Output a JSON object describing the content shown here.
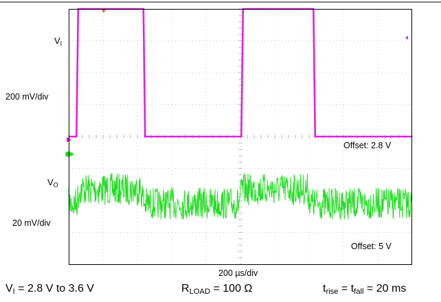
{
  "chart_data": {
    "type": "line",
    "title": "",
    "timebase": "200 µs/div",
    "grid": true,
    "x_divisions": 10,
    "y_divisions": 8,
    "channels": [
      {
        "name_main": "V",
        "name_sub": "I",
        "scale": "200 mV/div",
        "offset": "Offset: 2.8 V",
        "color": "#e020e0",
        "unit": "V",
        "offset_value": 2.8,
        "volts_per_div": 0.2,
        "x_div": [
          0.0,
          0.45,
          0.55,
          4.35,
          4.45,
          10.05,
          10.15,
          14.25,
          14.35,
          17.15,
          17.25,
          20.0
        ],
        "y": [
          2.8,
          2.8,
          3.6,
          3.6,
          2.8,
          2.8,
          3.6,
          3.6,
          2.8,
          2.8,
          2.8,
          2.8
        ]
      },
      {
        "name_main": "V",
        "name_sub": "O",
        "scale": "20 mV/div",
        "offset": "Offset: 5 V",
        "color": "#22dd22",
        "unit": "V",
        "offset_value": 5.0,
        "volts_per_div": 0.02,
        "noise_peak_to_peak": 0.02,
        "x_div": [
          0.0,
          0.45,
          0.65,
          4.2,
          4.4,
          9.9,
          10.1,
          13.9,
          14.1,
          17.3,
          17.5,
          20.0
        ],
        "y": [
          4.999,
          4.999,
          5.008,
          5.008,
          4.999,
          4.999,
          5.008,
          5.008,
          4.999,
          4.999,
          4.999,
          4.999
        ]
      }
    ],
    "conditions": {
      "vi_main": "V",
      "vi_sub": "I",
      "vi_text": " = 2.8 V to 3.6 V",
      "rload_main": "R",
      "rload_sub": "LOAD",
      "rload_text": " = 100 Ω",
      "trise_main": "t",
      "trise_sub": "rise",
      "eq": " = ",
      "tfall_main": "t",
      "tfall_sub": "fall",
      "tfall_text": " = 20 ms"
    }
  }
}
